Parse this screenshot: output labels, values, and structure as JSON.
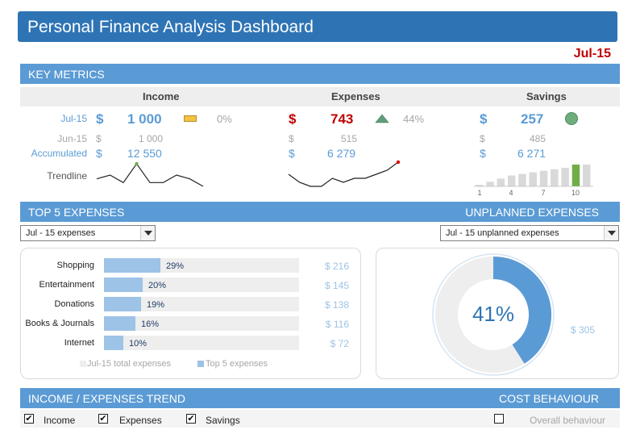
{
  "header": {
    "title": "Personal Finance Analysis Dashboard",
    "period": "Jul-15"
  },
  "key_metrics": {
    "section_title": "KEY METRICS",
    "columns": [
      "Income",
      "Expenses",
      "Savings"
    ],
    "row_labels": {
      "current": "Jul-15",
      "previous": "Jun-15",
      "accumulated": "Accumulated",
      "trendline": "Trendline"
    },
    "currency": "$",
    "income": {
      "current": "1 000",
      "change": "0%",
      "previous": "1 000",
      "accumulated": "12 550"
    },
    "expenses": {
      "current": "743",
      "change": "44%",
      "previous": "515",
      "accumulated": "6 279"
    },
    "savings": {
      "current": "257",
      "previous": "485",
      "accumulated": "6 271"
    },
    "savings_axis": [
      "1",
      "4",
      "7",
      "10"
    ],
    "colors": {
      "income_accent": "#5b9bd5",
      "expenses_accent": "#c00000",
      "indicator_flat": "#f4c141",
      "indicator_up": "#5f9e7c",
      "savings_ok": "#70ad7d"
    }
  },
  "top5": {
    "section_title": "TOP 5 EXPENSES",
    "dropdown_value": "Jul - 15 expenses",
    "items": [
      {
        "label": "Shopping",
        "pct": "29%",
        "share": 0.29,
        "amount": "$ 216"
      },
      {
        "label": "Entertainment",
        "pct": "20%",
        "share": 0.2,
        "amount": "$ 145"
      },
      {
        "label": "Donations",
        "pct": "19%",
        "share": 0.19,
        "amount": "$ 138"
      },
      {
        "label": "Books & Journals",
        "pct": "16%",
        "share": 0.16,
        "amount": "$ 116"
      },
      {
        "label": "Internet",
        "pct": "10%",
        "share": 0.1,
        "amount": "$ 72"
      }
    ],
    "legend_total": "Jul-15 total expenses",
    "legend_top5": "Top 5 expenses"
  },
  "unplanned": {
    "section_title": "UNPLANNED EXPENSES",
    "dropdown_value": "Jul - 15 unplanned expenses",
    "percent_label": "41%",
    "share": 0.41,
    "amount": "$ 305"
  },
  "trend": {
    "section_title": "INCOME / EXPENSES TREND",
    "checkboxes": [
      {
        "label": "Income",
        "checked": true
      },
      {
        "label": "Expenses",
        "checked": true
      },
      {
        "label": "Savings",
        "checked": true
      }
    ],
    "check_mark": "✔"
  },
  "cost": {
    "section_title": "COST BEHAVIOUR",
    "checkbox_label": "Overall behaviour"
  },
  "chart_data": [
    {
      "type": "line",
      "series": [
        {
          "values": [
            2,
            3,
            1,
            6,
            1,
            1,
            3,
            2,
            0
          ]
        }
      ]
    },
    {
      "type": "line",
      "series": [
        {
          "values": [
            3,
            1,
            0,
            0,
            2,
            1,
            2,
            2,
            3,
            4,
            6
          ]
        }
      ]
    },
    {
      "type": "bar",
      "categories": [
        "1",
        "2",
        "3",
        "4",
        "5",
        "6",
        "7",
        "8",
        "9",
        "10",
        "11"
      ],
      "values": [
        1,
        3,
        5,
        7,
        8,
        9,
        10,
        11,
        12,
        14,
        14
      ],
      "highlight_index": 9
    }
  ]
}
